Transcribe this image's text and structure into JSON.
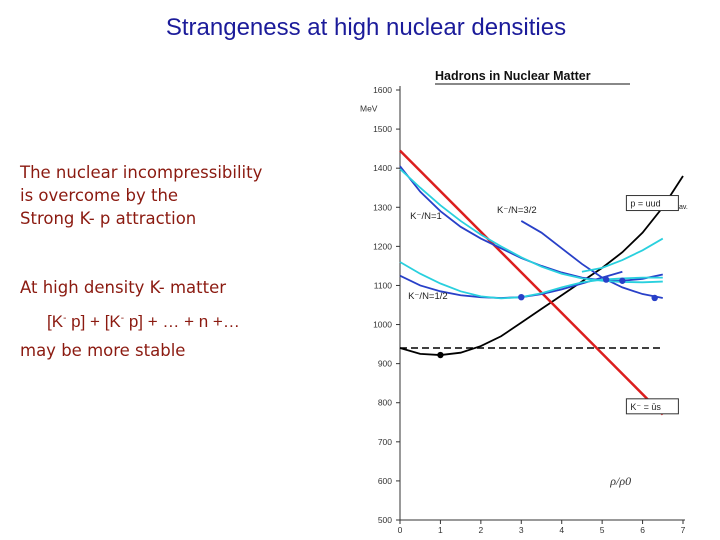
{
  "slide": {
    "title": "Strangeness at high nuclear densities",
    "bullet1_lines": [
      "The nuclear incompressibility",
      "is overcome by the",
      "Strong K- p attraction"
    ],
    "bullet2": "At high density  K- matter",
    "formula": {
      "k_part": "[K",
      "minus": "-",
      "p_part": " p] + ",
      "tail": " p] + … + n +…"
    },
    "bullet3": "may be more stable"
  },
  "chart_data": {
    "type": "line",
    "title": "Hadrons in Nuclear Matter",
    "xlabel": "ρ/ρ0",
    "ylabel": "MeV",
    "ylabel_tick": 1600,
    "xlim": [
      0,
      7
    ],
    "ylim": [
      500,
      1600
    ],
    "x_ticks": [
      0,
      1,
      2,
      3,
      4,
      5,
      6,
      7
    ],
    "y_ticks": [
      500,
      600,
      700,
      800,
      900,
      1000,
      1100,
      1200,
      1300,
      1400,
      1500,
      1600
    ],
    "legend_boxes": [
      "p = uud",
      "K⁻ = ūs"
    ],
    "annotations": [
      "K⁻/N=1",
      "K⁻/N=3/2",
      "K⁻/N=1/2",
      "av."
    ],
    "series": [
      {
        "name": "p = uud",
        "color": "#000000",
        "style": "solid",
        "points": [
          [
            0,
            940
          ],
          [
            0.5,
            925
          ],
          [
            1,
            922
          ],
          [
            1.5,
            928
          ],
          [
            2,
            945
          ],
          [
            2.5,
            970
          ],
          [
            3,
            1005
          ],
          [
            3.5,
            1040
          ],
          [
            4,
            1075
          ],
          [
            4.5,
            1110
          ],
          [
            5,
            1145
          ],
          [
            5.5,
            1185
          ],
          [
            6,
            1235
          ],
          [
            6.5,
            1300
          ],
          [
            7,
            1380
          ]
        ]
      },
      {
        "name": "",
        "color": "#000000",
        "style": "dashed",
        "points": [
          [
            0,
            940
          ],
          [
            6.5,
            940
          ]
        ]
      },
      {
        "name": "K⁻ = ūs",
        "color": "#dc1e1e",
        "style": "solid",
        "points": [
          [
            0,
            1445
          ],
          [
            6.5,
            770
          ]
        ]
      },
      {
        "name": "K⁻/N=1",
        "color": "#2840c8",
        "style": "solid",
        "points": [
          [
            0,
            1405
          ],
          [
            0.5,
            1340
          ],
          [
            1,
            1290
          ],
          [
            1.5,
            1250
          ],
          [
            2,
            1220
          ],
          [
            2.5,
            1195
          ],
          [
            3,
            1170
          ],
          [
            3.5,
            1150
          ],
          [
            4,
            1133
          ],
          [
            4.5,
            1120
          ],
          [
            5,
            1113
          ],
          [
            5.5,
            1112
          ],
          [
            6,
            1117
          ],
          [
            6.5,
            1128
          ]
        ]
      },
      {
        "name": "K⁻/N=3/2",
        "color": "#2840c8",
        "style": "solid",
        "points": [
          [
            3,
            1265
          ],
          [
            3.5,
            1235
          ],
          [
            4,
            1195
          ],
          [
            4.5,
            1155
          ],
          [
            5,
            1120
          ],
          [
            5.5,
            1095
          ],
          [
            6,
            1078
          ],
          [
            6.5,
            1068
          ]
        ]
      },
      {
        "name": "K⁻/N=1/2",
        "color": "#2840c8",
        "style": "solid",
        "points": [
          [
            0,
            1125
          ],
          [
            0.5,
            1100
          ],
          [
            1,
            1085
          ],
          [
            1.5,
            1075
          ],
          [
            2,
            1070
          ],
          [
            2.5,
            1068
          ],
          [
            3,
            1070
          ],
          [
            3.5,
            1078
          ],
          [
            4,
            1090
          ],
          [
            4.5,
            1105
          ],
          [
            5,
            1120
          ],
          [
            5.5,
            1135
          ]
        ]
      },
      {
        "name": "",
        "color": "#29d0de",
        "style": "solid",
        "points": [
          [
            0,
            1398
          ],
          [
            0.5,
            1350
          ],
          [
            1,
            1305
          ],
          [
            1.5,
            1265
          ],
          [
            2,
            1230
          ],
          [
            2.5,
            1200
          ],
          [
            3,
            1172
          ],
          [
            3.5,
            1148
          ],
          [
            4,
            1130
          ],
          [
            4.5,
            1118
          ],
          [
            5,
            1112
          ],
          [
            5.5,
            1109
          ],
          [
            6,
            1108
          ],
          [
            6.5,
            1110
          ]
        ]
      },
      {
        "name": "",
        "color": "#29d0de",
        "style": "solid",
        "points": [
          [
            0,
            1160
          ],
          [
            0.5,
            1130
          ],
          [
            1,
            1105
          ],
          [
            1.5,
            1085
          ],
          [
            2,
            1072
          ],
          [
            2.5,
            1067
          ],
          [
            3,
            1070
          ],
          [
            3.5,
            1080
          ],
          [
            4,
            1095
          ],
          [
            4.5,
            1108
          ],
          [
            5,
            1115
          ],
          [
            5.5,
            1118
          ],
          [
            6,
            1120
          ],
          [
            6.5,
            1120
          ]
        ]
      },
      {
        "name": "",
        "color": "#29d0de",
        "style": "solid",
        "points": [
          [
            4.5,
            1135
          ],
          [
            5,
            1145
          ],
          [
            5.5,
            1165
          ],
          [
            6,
            1190
          ],
          [
            6.5,
            1220
          ]
        ]
      }
    ],
    "markers": [
      {
        "x": 1,
        "y": 922,
        "color": "#000000"
      },
      {
        "x": 3,
        "y": 1070,
        "color": "#2840c8"
      },
      {
        "x": 5.1,
        "y": 1115,
        "color": "#2840c8"
      },
      {
        "x": 5.5,
        "y": 1112,
        "color": "#2840c8"
      },
      {
        "x": 6.3,
        "y": 1068,
        "color": "#2840c8"
      }
    ]
  }
}
